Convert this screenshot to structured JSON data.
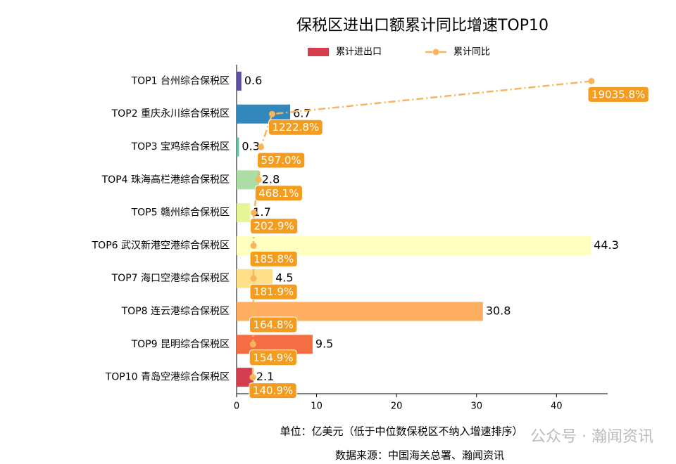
{
  "chart_data": {
    "type": "bar",
    "orientation": "horizontal",
    "title": "保税区进出口额累计同比增速TOP10",
    "categories": [
      "TOP1 台州综合保税区",
      "TOP2 重庆永川综合保税区",
      "TOP3 宝鸡综合保税区",
      "TOP4 珠海高栏港综合保税区",
      "TOP5 赣州综合保税区",
      "TOP6 武汉新港空港综合保税区",
      "TOP7 海口空港综合保税区",
      "TOP8 连云港综合保税区",
      "TOP9 昆明综合保税区",
      "TOP10 青岛空港综合保税区"
    ],
    "series": [
      {
        "name": "累计进出口",
        "type": "bar",
        "color": "#d53e4f",
        "colors": [
          "#5e4fa2",
          "#3288bd",
          "#66c2a5",
          "#abdda4",
          "#e6f598",
          "#ffffbf",
          "#fee08b",
          "#fdae61",
          "#f46d43",
          "#d53e4f"
        ],
        "values": [
          0.6,
          6.7,
          0.3,
          2.8,
          1.7,
          44.3,
          4.5,
          30.8,
          9.5,
          2.1
        ]
      },
      {
        "name": "累计同比",
        "type": "line",
        "axis": "x2",
        "color": "#f8b55a",
        "label_color": "#f39c1f",
        "values": [
          19035.8,
          1222.8,
          597.0,
          468.1,
          202.9,
          185.8,
          181.9,
          164.8,
          154.9,
          140.9
        ],
        "value_labels": [
          "19035.8%",
          "1222.8%",
          "597.0%",
          "468.1%",
          "202.9%",
          "185.8%",
          "181.9%",
          "164.8%",
          "154.9%",
          "140.9%"
        ]
      }
    ],
    "xlim": [
      0,
      46.4
    ],
    "xticks": [
      0,
      10,
      20,
      30,
      40
    ],
    "x2lim": [
      -760,
      19940
    ],
    "notes": [
      "单位：亿美元（低于中位数保税区不纳入增速排序）",
      "数据来源：中国海关总署、瀚闻资讯"
    ],
    "watermark": "公众号 · 瀚闻资讯"
  }
}
